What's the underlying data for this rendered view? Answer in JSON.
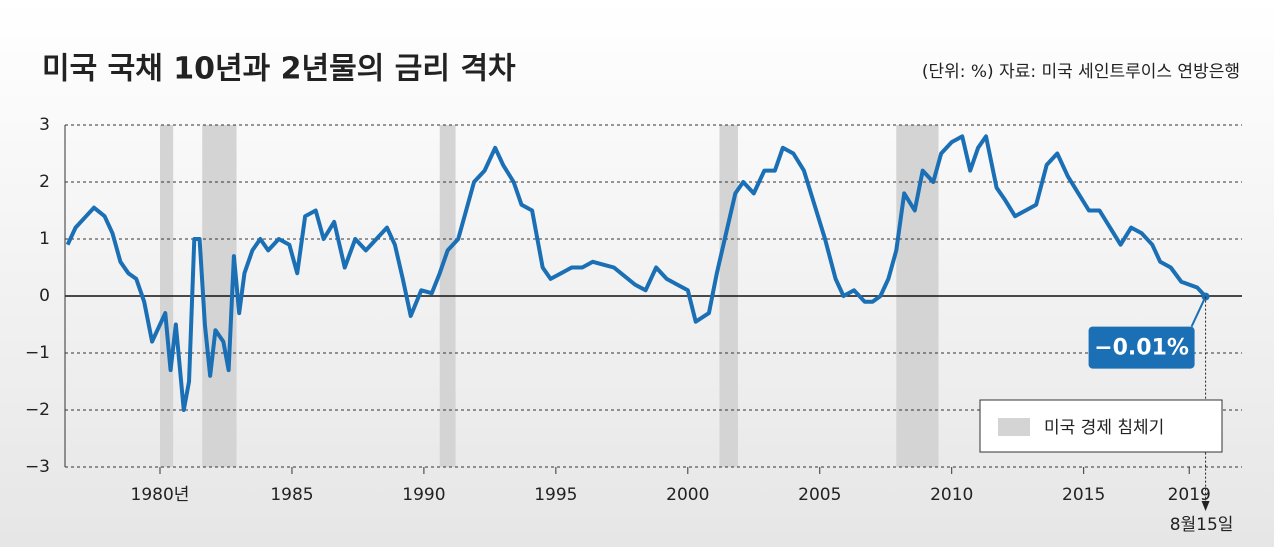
{
  "chart_data": {
    "type": "line",
    "title": "미국 국채 10년과 2년물의 금리 격차",
    "subtitle": "(단위: %) 자료: 미국 세인트루이스 연방은행",
    "x": [
      1976.5,
      1976.8,
      1977.2,
      1977.5,
      1977.9,
      1978.2,
      1978.5,
      1978.8,
      1979.1,
      1979.4,
      1979.7,
      1979.9,
      1980.2,
      1980.4,
      1980.6,
      1980.9,
      1981.1,
      1981.3,
      1981.5,
      1981.7,
      1981.9,
      1982.1,
      1982.4,
      1982.6,
      1982.8,
      1983.0,
      1983.2,
      1983.5,
      1983.8,
      1984.1,
      1984.5,
      1984.9,
      1985.2,
      1985.5,
      1985.9,
      1986.2,
      1986.6,
      1987.0,
      1987.4,
      1987.8,
      1988.2,
      1988.6,
      1988.9,
      1989.2,
      1989.5,
      1989.9,
      1990.3,
      1990.6,
      1990.9,
      1991.3,
      1991.6,
      1991.9,
      1992.3,
      1992.7,
      1993.0,
      1993.4,
      1993.7,
      1994.1,
      1994.5,
      1994.8,
      1995.2,
      1995.6,
      1996.0,
      1996.4,
      1996.8,
      1997.2,
      1997.6,
      1998.0,
      1998.4,
      1998.8,
      1999.2,
      1999.6,
      2000.0,
      2000.3,
      2000.8,
      2001.1,
      2001.4,
      2001.8,
      2002.1,
      2002.5,
      2002.9,
      2003.3,
      2003.6,
      2004.0,
      2004.4,
      2004.8,
      2005.2,
      2005.6,
      2005.9,
      2006.3,
      2006.7,
      2007.0,
      2007.3,
      2007.6,
      2007.9,
      2008.2,
      2008.6,
      2008.9,
      2009.3,
      2009.6,
      2010.0,
      2010.4,
      2010.7,
      2011.0,
      2011.3,
      2011.7,
      2012.0,
      2012.4,
      2012.8,
      2013.2,
      2013.6,
      2014.0,
      2014.4,
      2014.8,
      2015.2,
      2015.6,
      2016.0,
      2016.4,
      2016.8,
      2017.2,
      2017.6,
      2017.9,
      2018.3,
      2018.7,
      2019.0,
      2019.3,
      2019.62
    ],
    "series": [
      {
        "name": "금리 격차",
        "color": "#1a6fb5",
        "values": [
          0.9,
          1.2,
          1.4,
          1.55,
          1.4,
          1.1,
          0.6,
          0.4,
          0.3,
          -0.1,
          -0.8,
          -0.6,
          -0.3,
          -1.3,
          -0.5,
          -2.0,
          -1.5,
          1.0,
          1.0,
          -0.5,
          -1.4,
          -0.6,
          -0.8,
          -1.3,
          0.7,
          -0.3,
          0.4,
          0.8,
          1.0,
          0.8,
          1.0,
          0.9,
          0.4,
          1.4,
          1.5,
          1.0,
          1.3,
          0.5,
          1.0,
          0.8,
          1.0,
          1.2,
          0.9,
          0.3,
          -0.35,
          0.1,
          0.05,
          0.4,
          0.8,
          1.0,
          1.5,
          2.0,
          2.2,
          2.6,
          2.3,
          2.0,
          1.6,
          1.5,
          0.5,
          0.3,
          0.4,
          0.5,
          0.5,
          0.6,
          0.55,
          0.5,
          0.35,
          0.2,
          0.1,
          0.5,
          0.3,
          0.2,
          0.1,
          -0.45,
          -0.3,
          0.4,
          1.0,
          1.8,
          2.0,
          1.8,
          2.2,
          2.2,
          2.6,
          2.5,
          2.2,
          1.6,
          1.0,
          0.3,
          0.0,
          0.1,
          -0.1,
          -0.1,
          0.0,
          0.3,
          0.8,
          1.8,
          1.5,
          2.2,
          2.0,
          2.5,
          2.7,
          2.8,
          2.2,
          2.6,
          2.8,
          1.9,
          1.7,
          1.4,
          1.5,
          1.6,
          2.3,
          2.5,
          2.1,
          1.8,
          1.5,
          1.5,
          1.2,
          0.9,
          1.2,
          1.1,
          0.9,
          0.6,
          0.5,
          0.25,
          0.2,
          0.15,
          -0.01
        ]
      }
    ],
    "annotations": [
      {
        "x": 2019.62,
        "value": -0.01,
        "label": "−0.01%"
      },
      {
        "x": 2019.62,
        "label": "8월15일"
      }
    ],
    "recessions": {
      "name": "미국 경제 침체기",
      "color": "#d4d4d4",
      "periods": [
        [
          1980.0,
          1980.5
        ],
        [
          1981.6,
          1982.9
        ],
        [
          1990.6,
          1991.2
        ],
        [
          2001.2,
          2001.9
        ],
        [
          2007.9,
          2009.5
        ]
      ]
    },
    "xlim": [
      1976.4,
      2021.0
    ],
    "xticks": [
      {
        "value": 1980,
        "label": "1980년"
      },
      1985,
      1990,
      1995,
      2000,
      2005,
      2010,
      2015,
      2019
    ],
    "ylim": [
      -3,
      3
    ],
    "yticks": [
      {
        "value": -3,
        "label": "−3"
      },
      {
        "value": -2,
        "label": "−2"
      },
      {
        "value": -1,
        "label": "−1"
      },
      0,
      1,
      2,
      3
    ],
    "grid": true,
    "legend": "lower right"
  }
}
